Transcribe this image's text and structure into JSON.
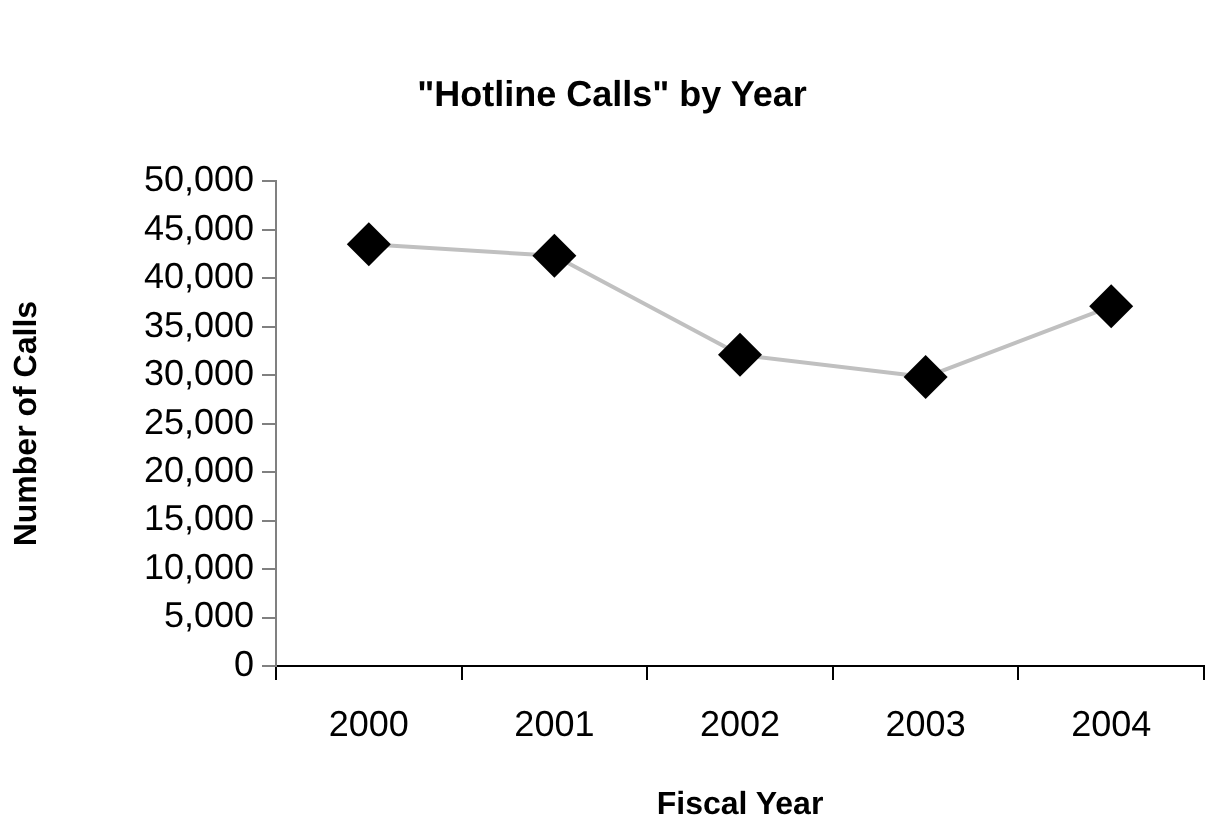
{
  "chart_data": {
    "type": "line",
    "title": "\"Hotline Calls\" by Year",
    "xlabel": "Fiscal Year",
    "ylabel": "Number of Calls",
    "categories": [
      "2000",
      "2001",
      "2002",
      "2003",
      "2004"
    ],
    "series": [
      {
        "color": "#000000",
        "values": [
          43500,
          42300,
          32100,
          29800,
          37100
        ]
      }
    ],
    "ylim": [
      0,
      50000
    ],
    "yticks": [
      0,
      {
        "value": 5000,
        "label": "5,000"
      },
      {
        "value": 10000,
        "label": "10,000"
      },
      {
        "value": 15000,
        "label": "15,000"
      },
      {
        "value": 20000,
        "label": "20,000"
      },
      {
        "value": 25000,
        "label": "25,000"
      },
      {
        "value": 30000,
        "label": "30,000"
      },
      {
        "value": 35000,
        "label": "35,000"
      },
      {
        "value": 40000,
        "label": "40,000"
      },
      {
        "value": 45000,
        "label": "45,000"
      },
      {
        "value": 50000,
        "label": "50,000"
      }
    ],
    "grid": false,
    "legend": false,
    "marker": "diamond",
    "line_style": "solid"
  }
}
